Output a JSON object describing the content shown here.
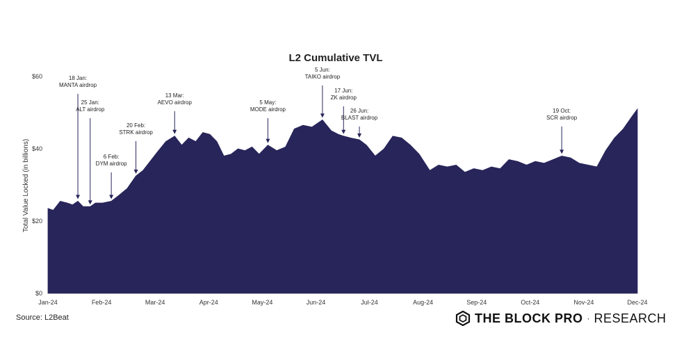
{
  "chart_data": {
    "type": "area",
    "title": "L2 Cumulative TVL",
    "ylabel": "Total Value Locked (in billions)",
    "ylim": [
      0,
      60
    ],
    "y_ticks": [
      "$0",
      "$20",
      "$40",
      "$60"
    ],
    "y_tick_values": [
      0,
      20,
      40,
      60
    ],
    "x_ticks": [
      "Jan-24",
      "Feb-24",
      "Mar-24",
      "Apr-24",
      "May-24",
      "Jun-24",
      "Jul-24",
      "Aug-24",
      "Sep-24",
      "Oct-24",
      "Nov-24",
      "Dec-24"
    ],
    "x_range": [
      "2024-01-01",
      "2024-12-01"
    ],
    "series_color": "#28255a",
    "series": [
      {
        "x": [
          "2024-01-01",
          "2024-01-04",
          "2024-01-08",
          "2024-01-12",
          "2024-01-15",
          "2024-01-18",
          "2024-01-21",
          "2024-01-25",
          "2024-01-28",
          "2024-02-01",
          "2024-02-06",
          "2024-02-10",
          "2024-02-15",
          "2024-02-20",
          "2024-02-24",
          "2024-02-28",
          "2024-03-03",
          "2024-03-08",
          "2024-03-13",
          "2024-03-17",
          "2024-03-21",
          "2024-03-25",
          "2024-03-29",
          "2024-04-02",
          "2024-04-06",
          "2024-04-10",
          "2024-04-14",
          "2024-04-18",
          "2024-04-22",
          "2024-04-26",
          "2024-04-30",
          "2024-05-05",
          "2024-05-10",
          "2024-05-15",
          "2024-05-20",
          "2024-05-25",
          "2024-05-30",
          "2024-06-05",
          "2024-06-10",
          "2024-06-14",
          "2024-06-17",
          "2024-06-21",
          "2024-06-26",
          "2024-06-30",
          "2024-07-05",
          "2024-07-10",
          "2024-07-15",
          "2024-07-20",
          "2024-07-25",
          "2024-07-30",
          "2024-08-05",
          "2024-08-10",
          "2024-08-15",
          "2024-08-20",
          "2024-08-25",
          "2024-08-30",
          "2024-09-04",
          "2024-09-09",
          "2024-09-14",
          "2024-09-19",
          "2024-09-24",
          "2024-09-29",
          "2024-10-04",
          "2024-10-09",
          "2024-10-14",
          "2024-10-19",
          "2024-10-24",
          "2024-10-29",
          "2024-11-03",
          "2024-11-08",
          "2024-11-13",
          "2024-11-18",
          "2024-11-23",
          "2024-11-28",
          "2024-12-01"
        ],
        "values": [
          23.5,
          23.0,
          25.5,
          25.0,
          24.5,
          25.5,
          24.0,
          24.0,
          25.0,
          25.0,
          25.5,
          27.0,
          29.0,
          32.5,
          34.0,
          36.5,
          39.0,
          42.0,
          43.5,
          41.0,
          43.0,
          42.0,
          44.5,
          44.0,
          42.0,
          38.0,
          38.5,
          40.0,
          39.5,
          40.5,
          38.5,
          41.0,
          39.5,
          40.5,
          45.5,
          46.5,
          46.0,
          48.0,
          45.0,
          44.0,
          43.5,
          43.0,
          42.5,
          41.0,
          38.0,
          40.0,
          43.5,
          43.0,
          41.0,
          38.5,
          34.0,
          35.5,
          35.0,
          35.5,
          33.5,
          34.5,
          34.0,
          35.0,
          34.5,
          37.0,
          36.5,
          35.5,
          36.5,
          36.0,
          37.0,
          38.0,
          37.5,
          36.0,
          35.5,
          35.0,
          39.5,
          43.0,
          45.5,
          49.0,
          51.0
        ]
      }
    ],
    "annotations": [
      {
        "x": "2024-01-18",
        "y": 25.5,
        "lines": [
          "18 Jan:",
          "MANTA airdrop"
        ]
      },
      {
        "x": "2024-01-25",
        "y": 24.0,
        "lines": [
          "25 Jan:",
          "ALT airdrop"
        ]
      },
      {
        "x": "2024-02-06",
        "y": 25.5,
        "lines": [
          "6 Feb:",
          "DYM airdrop"
        ]
      },
      {
        "x": "2024-02-20",
        "y": 32.5,
        "lines": [
          "20 Feb:",
          "STRK airdrop"
        ]
      },
      {
        "x": "2024-03-13",
        "y": 43.5,
        "lines": [
          "13 Mar:",
          "AEVO airdrop"
        ]
      },
      {
        "x": "2024-05-05",
        "y": 41.0,
        "lines": [
          "5 May:",
          "MODE airdrop"
        ]
      },
      {
        "x": "2024-06-05",
        "y": 48.0,
        "lines": [
          "5 Jun:",
          "TAIKO airdrop"
        ]
      },
      {
        "x": "2024-06-17",
        "y": 43.5,
        "lines": [
          "17 Jun:",
          "ZK airdrop"
        ]
      },
      {
        "x": "2024-06-26",
        "y": 42.5,
        "lines": [
          "26 Jun:",
          "BLAST airdrop"
        ]
      },
      {
        "x": "2024-10-19",
        "y": 38.0,
        "lines": [
          "19 Oct:",
          "SCR airdrop"
        ]
      }
    ],
    "grid": false,
    "legend": "none"
  },
  "footer": {
    "source": "Source: L2Beat",
    "brand_bold": "THE BLOCK PRO",
    "brand_separator": "·",
    "brand_thin": "RESEARCH",
    "logo_icon": "block-cube-logo"
  }
}
